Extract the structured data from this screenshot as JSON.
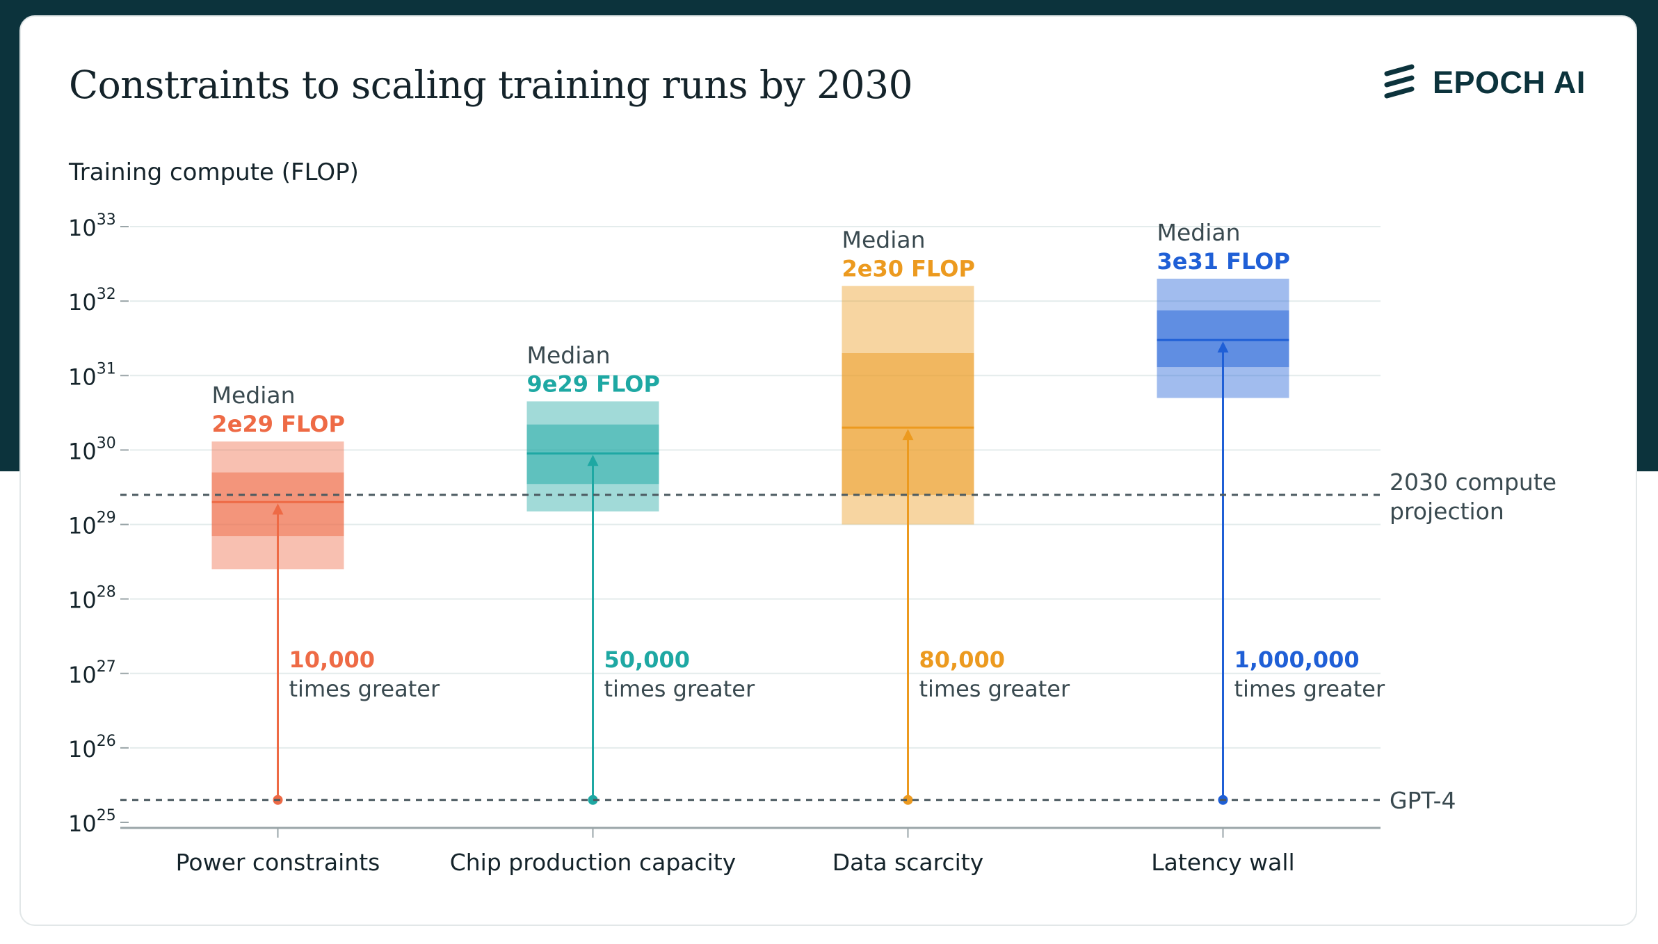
{
  "page": {
    "title": "Constraints to scaling training runs by 2030",
    "brand": "EPOCH AI",
    "brand_icon": "epoch-stripes-logo",
    "colors": {
      "background_dark": "#0c333c",
      "card": "#ffffff",
      "text": "#14232a",
      "gridline": "#e4ecec",
      "reference_line": "#4b5a60"
    }
  },
  "chart_data": {
    "type": "box",
    "title": "Constraints to scaling training runs by 2030",
    "ylabel": "Training compute (FLOP)",
    "xlabel": "",
    "yscale": "log",
    "ylim_exponent": [
      25,
      33
    ],
    "ytick_base": "10",
    "ytick_exponents": [
      "33",
      "32",
      "31",
      "30",
      "29",
      "28",
      "27",
      "26",
      "25"
    ],
    "grid": true,
    "categories": [
      "Power constraints",
      "Chip production capacity",
      "Data scarcity",
      "Latency wall"
    ],
    "reference_lines": [
      {
        "label": "2030 compute projection",
        "value": 2.5e+29
      },
      {
        "label": "GPT-4",
        "value": 2e+25
      }
    ],
    "series": [
      {
        "category": "Power constraints",
        "color": "#ee6a45",
        "median_label": "Median",
        "median_text": "2e29 FLOP",
        "median": 2e+29,
        "inner_range": [
          7e+28,
          5e+29
        ],
        "outer_range": [
          2.5e+28,
          1.3e+30
        ],
        "gain_value": "10,000",
        "gain_text": "times greater"
      },
      {
        "category": "Chip production capacity",
        "color": "#1ea8a3",
        "median_label": "Median",
        "median_text": "9e29 FLOP",
        "median": 9e+29,
        "inner_range": [
          3.5e+29,
          2.2e+30
        ],
        "outer_range": [
          1.5e+29,
          4.5e+30
        ],
        "gain_value": "50,000",
        "gain_text": "times greater"
      },
      {
        "category": "Data scarcity",
        "color": "#ec9a1f",
        "median_label": "Median",
        "median_text": "2e30 FLOP",
        "median": 2e+30,
        "inner_range": [
          2.5e+29,
          2e+31
        ],
        "outer_range": [
          1e+29,
          1.6e+32
        ],
        "gain_value": "80,000",
        "gain_text": "times greater"
      },
      {
        "category": "Latency wall",
        "color": "#1f5fd6",
        "median_label": "Median",
        "median_text": "3e31 FLOP",
        "median": 3e+31,
        "inner_range": [
          1.3e+31,
          7.5e+31
        ],
        "outer_range": [
          5e+30,
          2e+32
        ],
        "gain_value": "1,000,000",
        "gain_text": "times greater"
      }
    ]
  }
}
